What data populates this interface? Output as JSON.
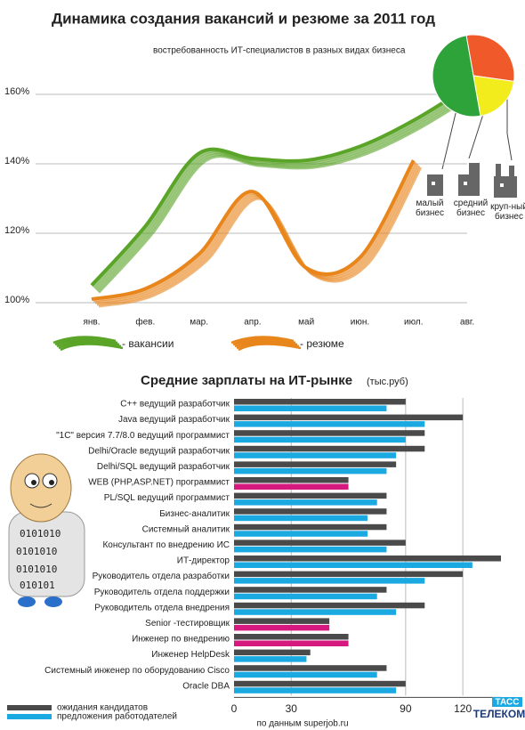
{
  "chart_data": [
    {
      "type": "line",
      "title": "Динамика создания вакансий и резюме за 2011 год",
      "categories": [
        "янв.",
        "фев.",
        "мар.",
        "апр.",
        "май",
        "июн.",
        "июл.",
        "авг."
      ],
      "series": [
        {
          "name": "- вакансии",
          "color": "#5aa428",
          "values": [
            105,
            122,
            143,
            141.5,
            141,
            145,
            152.5,
            162
          ]
        },
        {
          "name": "- резюме",
          "color": "#e8861c",
          "values": [
            101,
            104,
            114,
            132,
            110,
            113,
            141,
            null
          ]
        }
      ],
      "ylim": [
        100,
        164
      ],
      "yticks": [
        {
          "value": 100,
          "label": "100%"
        },
        {
          "value": 120,
          "label": "120%"
        },
        {
          "value": 140,
          "label": "140%"
        },
        {
          "value": 160,
          "label": "160%"
        }
      ],
      "grid": true
    },
    {
      "type": "pie",
      "subtitle": "востребованность ИТ-специалистов в разных видах бизнеса",
      "categories": [
        "круп-ный бизнес",
        "средний бизнес",
        "малый бизнес"
      ],
      "values": [
        30,
        20,
        50
      ],
      "colors": [
        "#f05a2a",
        "#f3ec1c",
        "#2ea33a"
      ]
    },
    {
      "type": "hbar",
      "title": "Средние зарплаты на ИТ-рынке",
      "unit": "(тыс.руб)",
      "categories": [
        "C++ ведущий разработчик",
        "Java ведущий разработчик",
        "\"1С\" версия 7.7/8.0 ведущий программист",
        "Delhi/Oracle ведущий разработчик",
        "Delhi/SQL ведущий разработчик",
        "WEB (PHP,ASP.NET) программист",
        "PL/SQL ведущий программист",
        "Бизнес-аналитик",
        "Системный аналитик",
        "Консультант по внедрению ИС",
        "ИТ-директор",
        "Руководитель отдела разработки",
        "Руководитель отдела поддержки",
        "Руководитель отдела внедрения",
        "Senior -тестировщик",
        "Инженер по внедрению",
        "Инженер HelpDesk",
        "Системный инженер по оборудованию Cisco",
        "Oracle DBA"
      ],
      "series": [
        {
          "name": "ожидания кандидатов",
          "color": "#4a4a4a",
          "values": [
            90,
            120,
            100,
            100,
            85,
            60,
            80,
            80,
            80,
            90,
            140,
            120,
            80,
            100,
            50,
            60,
            40,
            80,
            90
          ]
        },
        {
          "name": "предложения работодателей",
          "color": "#1ba9e1",
          "values": [
            80,
            100,
            90,
            85,
            80,
            60,
            75,
            70,
            70,
            80,
            125,
            100,
            75,
            85,
            50,
            60,
            38,
            75,
            85
          ],
          "colors": [
            "#1ba9e1",
            "#1ba9e1",
            "#1ba9e1",
            "#1ba9e1",
            "#1ba9e1",
            "#d6197f",
            "#1ba9e1",
            "#1ba9e1",
            "#1ba9e1",
            "#1ba9e1",
            "#1ba9e1",
            "#1ba9e1",
            "#1ba9e1",
            "#1ba9e1",
            "#d6197f",
            "#d6197f",
            "#1ba9e1",
            "#1ba9e1",
            "#1ba9e1"
          ]
        }
      ],
      "xlim": [
        0,
        140
      ],
      "xticks": [
        0,
        30,
        90,
        120
      ],
      "grid": true,
      "source": "по данным superjob.ru"
    }
  ],
  "logo": [
    "ТАСС",
    "ТЕЛЕКОМ"
  ]
}
